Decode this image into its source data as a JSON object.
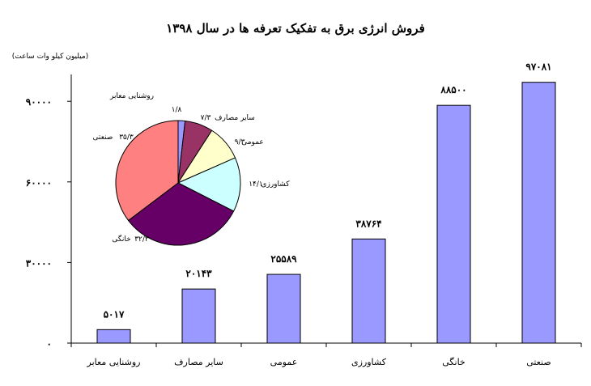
{
  "chart_data": [
    {
      "type": "bar",
      "title": "فروش انرژی برق به تفکیک تعرفه ها در سال ۱۳۹۸",
      "ylabel": "(میلیون کیلو وات ساعت)",
      "categories": [
        "روشنایی معابر",
        "سایر مصارف",
        "عمومی",
        "کشاورزی",
        "خانگی",
        "صنعتی"
      ],
      "values": [
        5017,
        20143,
        25589,
        38764,
        88500,
        97081
      ],
      "value_labels": [
        "۵۰۱۷",
        "۲۰۱۴۳",
        "۲۵۵۸۹",
        "۳۸۷۶۴",
        "۸۸۵۰۰",
        "۹۷۰۸۱"
      ],
      "ylim": [
        0,
        100000
      ],
      "yticks": [
        0,
        30000,
        60000,
        90000
      ],
      "ytick_labels": [
        "۰",
        "۳۰۰۰۰",
        "۶۰۰۰۰",
        "۹۰۰۰۰"
      ],
      "bar_color": "#9999ff",
      "grid": false
    },
    {
      "type": "pie",
      "slices": [
        {
          "name": "روشنایی معابر",
          "value": 1.8,
          "value_label": "۱/۸",
          "color": "#9999ff"
        },
        {
          "name": "سایر مصارف",
          "value": 7.3,
          "value_label": "۷/۳",
          "color": "#993366"
        },
        {
          "name": "عمومی",
          "value": 9.3,
          "value_label": "۹/۳",
          "color": "#ffffcc"
        },
        {
          "name": "کشاورزی",
          "value": 14.1,
          "value_label": "۱۴/۱",
          "color": "#ccffff"
        },
        {
          "name": "خانگی",
          "value": 32.2,
          "value_label": "۳۲/۲",
          "color": "#660066"
        },
        {
          "name": "صنعتی",
          "value": 35.3,
          "value_label": "۳۵/۳",
          "color": "#ff8080"
        }
      ]
    }
  ]
}
